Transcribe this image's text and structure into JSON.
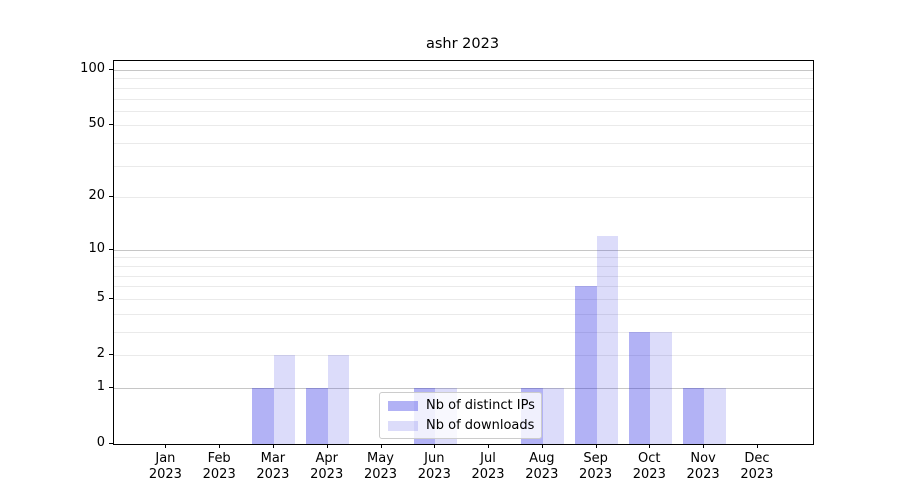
{
  "title": "ashr 2023",
  "chart_data": {
    "type": "bar",
    "title": "ashr 2023",
    "months": [
      "Jan",
      "Feb",
      "Mar",
      "Apr",
      "May",
      "Jun",
      "Jul",
      "Aug",
      "Sep",
      "Oct",
      "Nov",
      "Dec"
    ],
    "year_label": "2023",
    "series": [
      {
        "name": "Nb of distinct IPs",
        "color": "rgba(30,30,225,0.34)",
        "legend_swatch_color": "#a9a9f2",
        "values": [
          0,
          0,
          1,
          1,
          0,
          1,
          0,
          1,
          6,
          3,
          1,
          0
        ]
      },
      {
        "name": "Nb of downloads",
        "color": "rgba(30,30,225,0.155)",
        "legend_swatch_color": "#dcdcf8",
        "values": [
          0,
          0,
          2,
          2,
          0,
          1,
          0,
          1,
          12,
          3,
          1,
          0
        ]
      }
    ],
    "scale": "log10(1+x)",
    "ylim": [
      0,
      101
    ],
    "ytick_labels": [
      0,
      1,
      2,
      5,
      10,
      20,
      50,
      100
    ],
    "minor_gridlines": [
      2,
      3,
      4,
      5,
      6,
      7,
      8,
      9,
      20,
      30,
      40,
      50,
      60,
      70,
      80,
      90
    ],
    "major_gridlines": [
      1,
      10,
      100
    ],
    "grid": "on",
    "legend_position": "inside lower center",
    "legend_entries": [
      "Nb of distinct IPs",
      "Nb of downloads"
    ]
  },
  "colors": {
    "background": "#ffffff",
    "axis": "#000000",
    "text": "#000000",
    "minor_grid": "#eaeaea",
    "major_grid": "#c6c6c6",
    "legend_border": "#cccccc",
    "legend_bg": "rgba(255,255,255,0.8)"
  }
}
